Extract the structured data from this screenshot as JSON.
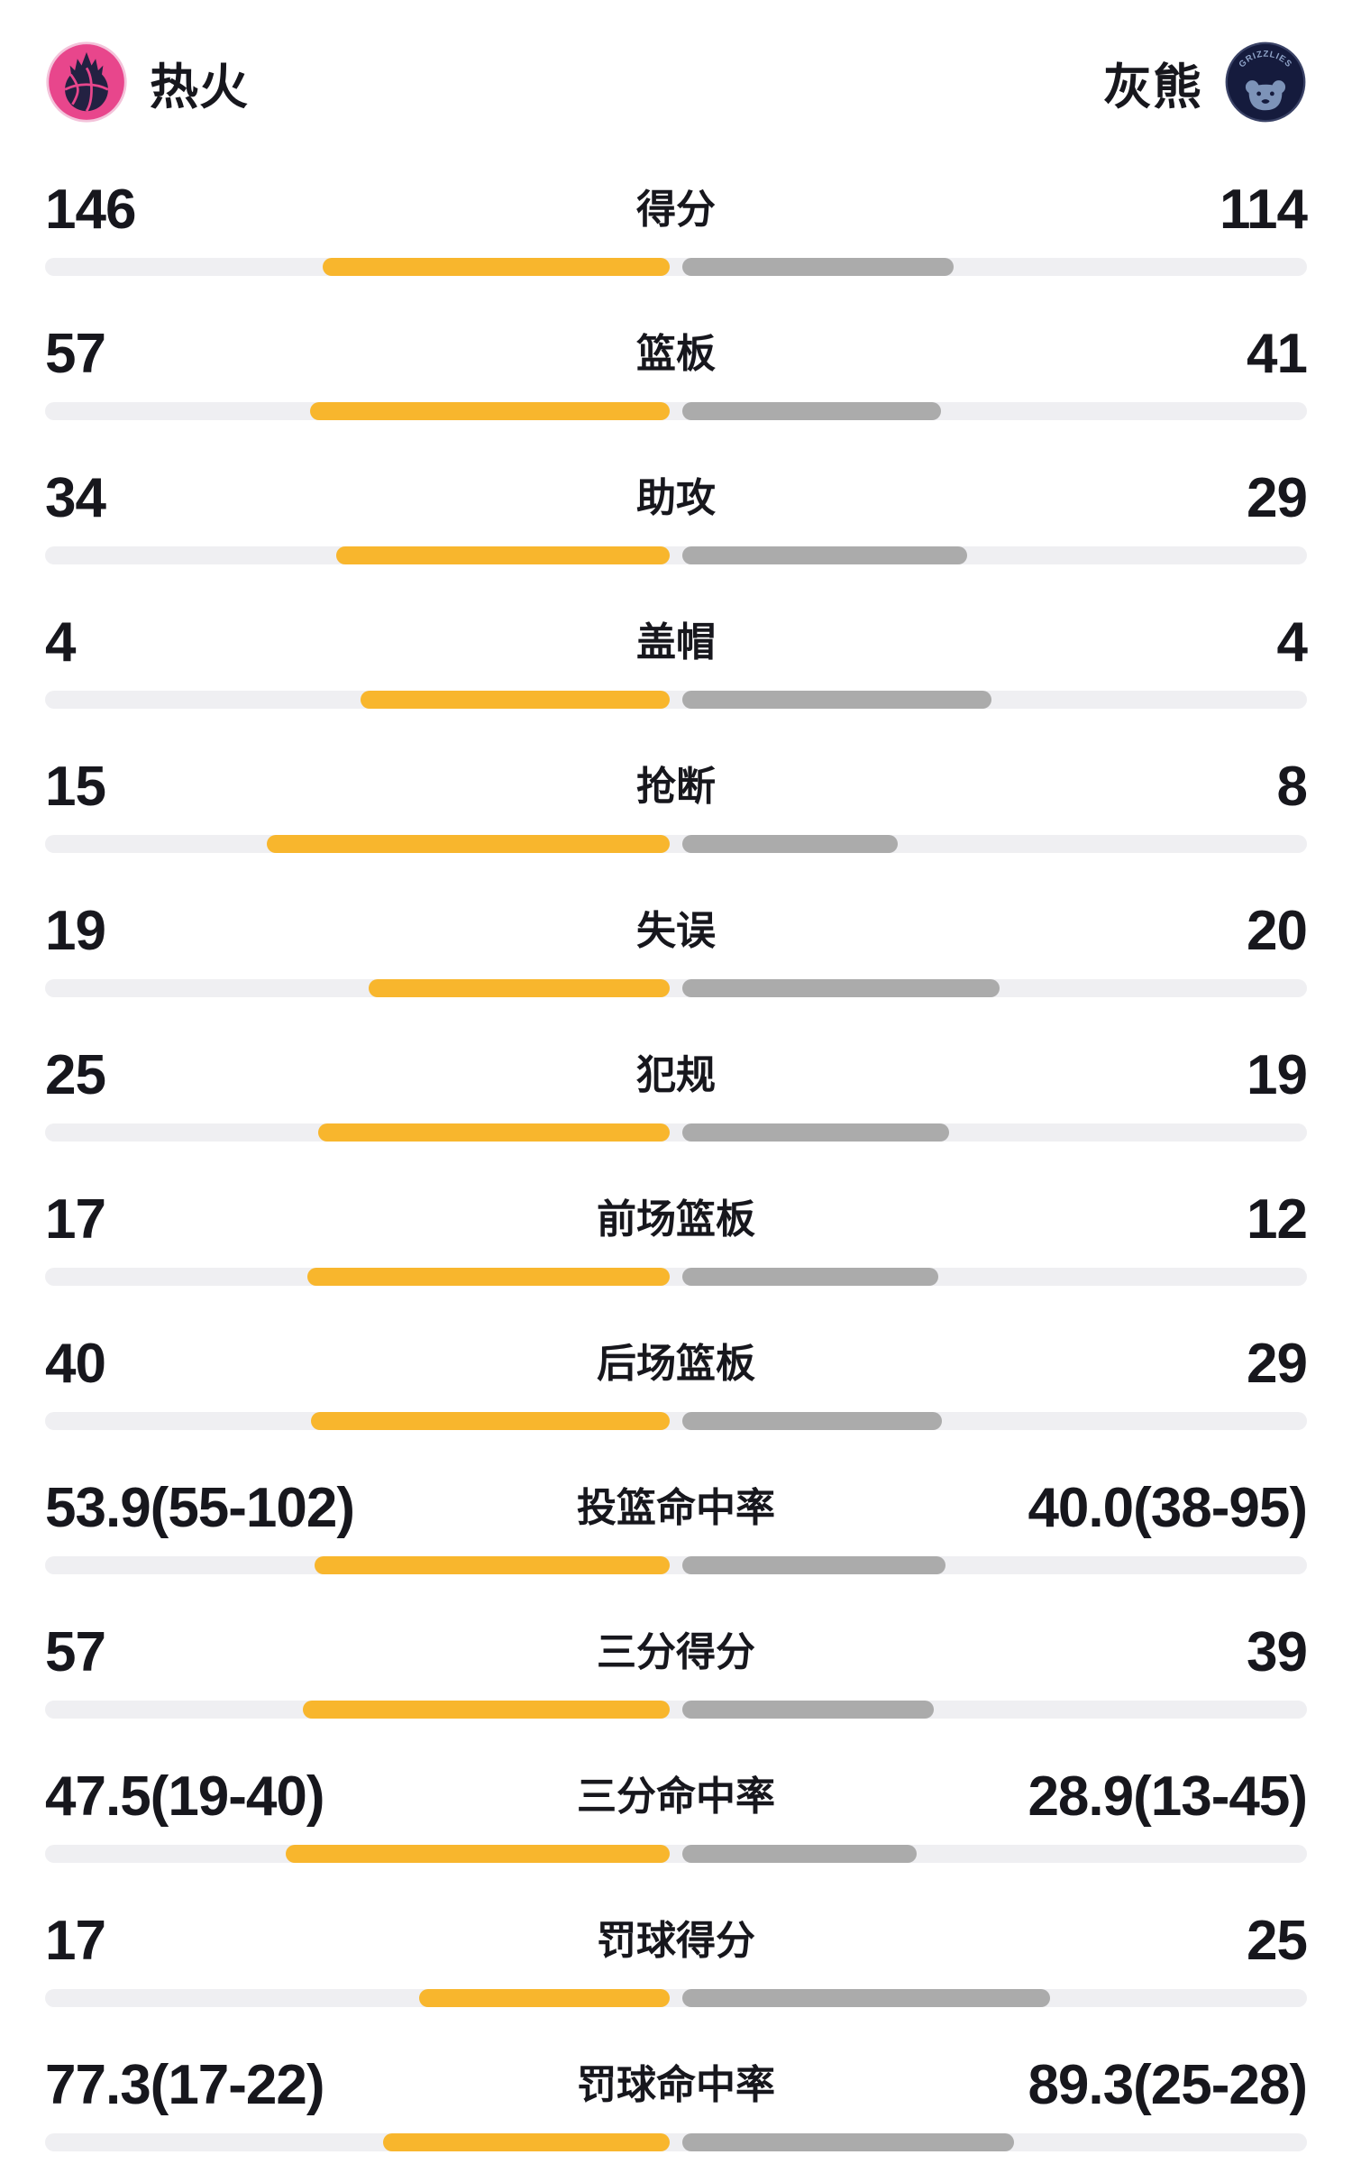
{
  "header": {
    "home": {
      "name": "热火"
    },
    "away": {
      "name": "灰熊",
      "logo_text": "GRIZZLIES"
    }
  },
  "colors": {
    "home_bar": "#f8b62d",
    "away_bar": "#ababab",
    "track": "#efeff2",
    "text": "#17171d",
    "heat_pink": "#e8468c",
    "heat_dark": "#232142",
    "grizzlies_navy": "#151b3d",
    "grizzlies_blue": "#7d93b8"
  },
  "chart_data": {
    "type": "bar",
    "layout": "diverging-horizontal-from-center",
    "legend": [
      "热火",
      "灰熊"
    ],
    "rows": [
      {
        "label": "得分",
        "home_display": "146",
        "away_display": "114",
        "home_value": 146,
        "away_value": 114
      },
      {
        "label": "篮板",
        "home_display": "57",
        "away_display": "41",
        "home_value": 57,
        "away_value": 41
      },
      {
        "label": "助攻",
        "home_display": "34",
        "away_display": "29",
        "home_value": 34,
        "away_value": 29
      },
      {
        "label": "盖帽",
        "home_display": "4",
        "away_display": "4",
        "home_value": 4,
        "away_value": 4
      },
      {
        "label": "抢断",
        "home_display": "15",
        "away_display": "8",
        "home_value": 15,
        "away_value": 8
      },
      {
        "label": "失误",
        "home_display": "19",
        "away_display": "20",
        "home_value": 19,
        "away_value": 20
      },
      {
        "label": "犯规",
        "home_display": "25",
        "away_display": "19",
        "home_value": 25,
        "away_value": 19
      },
      {
        "label": "前场篮板",
        "home_display": "17",
        "away_display": "12",
        "home_value": 17,
        "away_value": 12
      },
      {
        "label": "后场篮板",
        "home_display": "40",
        "away_display": "29",
        "home_value": 40,
        "away_value": 29
      },
      {
        "label": "投篮命中率",
        "home_display": "53.9(55-102)",
        "away_display": "40.0(38-95)",
        "home_value": 53.9,
        "away_value": 40.0
      },
      {
        "label": "三分得分",
        "home_display": "57",
        "away_display": "39",
        "home_value": 57,
        "away_value": 39
      },
      {
        "label": "三分命中率",
        "home_display": "47.5(19-40)",
        "away_display": "28.9(13-45)",
        "home_value": 47.5,
        "away_value": 28.9
      },
      {
        "label": "罚球得分",
        "home_display": "17",
        "away_display": "25",
        "home_value": 17,
        "away_value": 25
      },
      {
        "label": "罚球命中率",
        "home_display": "77.3(17-22)",
        "away_display": "89.3(25-28)",
        "home_value": 77.3,
        "away_value": 89.3
      }
    ]
  }
}
